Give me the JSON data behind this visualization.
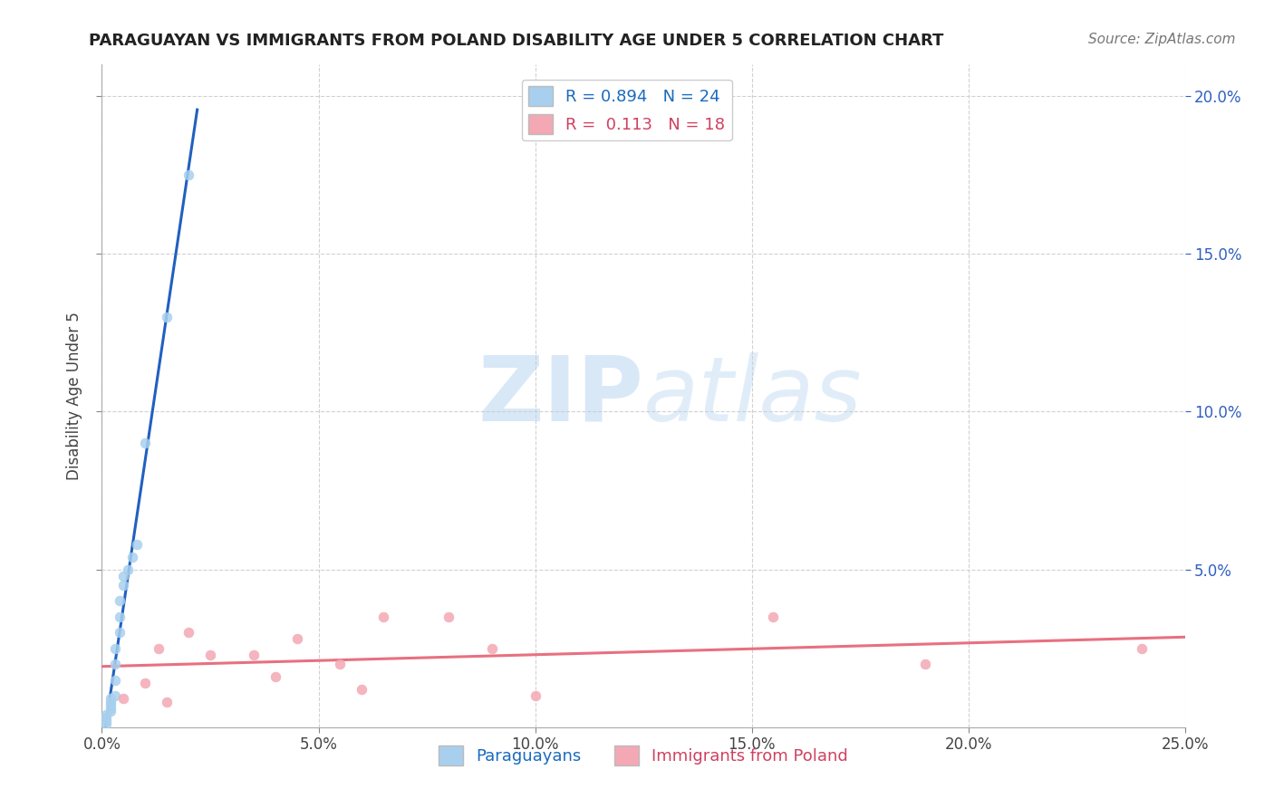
{
  "title": "PARAGUAYAN VS IMMIGRANTS FROM POLAND DISABILITY AGE UNDER 5 CORRELATION CHART",
  "source": "Source: ZipAtlas.com",
  "ylabel_label": "Disability Age Under 5",
  "xlim": [
    0.0,
    0.25
  ],
  "ylim": [
    0.0,
    0.21
  ],
  "xticks": [
    0.0,
    0.05,
    0.1,
    0.15,
    0.2,
    0.25
  ],
  "xticklabels": [
    "0.0%",
    "5.0%",
    "10.0%",
    "15.0%",
    "20.0%",
    "25.0%"
  ],
  "yticks": [
    0.05,
    0.1,
    0.15,
    0.2
  ],
  "right_yticklabels": [
    "5.0%",
    "10.0%",
    "15.0%",
    "20.0%"
  ],
  "paraguayan_color": "#a8d0ee",
  "poland_color": "#f4a8b4",
  "trendline_blue": "#2060c0",
  "trendline_pink": "#e87080",
  "R_paraguayan": "0.894",
  "N_paraguayan": "24",
  "R_poland": "0.113",
  "N_poland": "18",
  "paraguayan_x": [
    0.001,
    0.001,
    0.001,
    0.001,
    0.002,
    0.002,
    0.002,
    0.002,
    0.002,
    0.003,
    0.003,
    0.003,
    0.003,
    0.004,
    0.004,
    0.004,
    0.005,
    0.005,
    0.006,
    0.007,
    0.008,
    0.01,
    0.015,
    0.02
  ],
  "paraguayan_y": [
    0.001,
    0.002,
    0.003,
    0.004,
    0.005,
    0.006,
    0.007,
    0.008,
    0.009,
    0.01,
    0.015,
    0.02,
    0.025,
    0.03,
    0.035,
    0.04,
    0.045,
    0.048,
    0.05,
    0.054,
    0.058,
    0.09,
    0.13,
    0.175
  ],
  "poland_x": [
    0.005,
    0.01,
    0.013,
    0.015,
    0.02,
    0.025,
    0.035,
    0.04,
    0.045,
    0.055,
    0.06,
    0.065,
    0.08,
    0.09,
    0.1,
    0.155,
    0.19,
    0.24
  ],
  "poland_y": [
    0.009,
    0.014,
    0.025,
    0.008,
    0.03,
    0.023,
    0.023,
    0.016,
    0.028,
    0.02,
    0.012,
    0.035,
    0.035,
    0.025,
    0.01,
    0.035,
    0.02,
    0.025
  ],
  "watermark_zip": "ZIP",
  "watermark_atlas": "atlas",
  "background_color": "#ffffff",
  "grid_color": "#cccccc",
  "legend_label_blue": "R = 0.894   N = 24",
  "legend_label_pink": "R =  0.113   N = 18"
}
